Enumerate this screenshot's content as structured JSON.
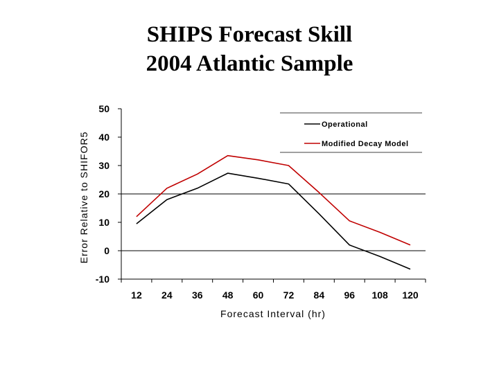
{
  "page": {
    "title_line1": "SHIPS Forecast Skill",
    "title_line2": "2004 Atlantic Sample"
  },
  "chart_data": {
    "type": "line",
    "title": "SHIPS Forecast Skill 2004 Atlantic Sample",
    "xlabel": "Forecast Interval (hr)",
    "ylabel": "Error Relative to SHIFOR5",
    "x": [
      12,
      24,
      36,
      48,
      60,
      72,
      84,
      96,
      108,
      120
    ],
    "ylim": [
      -10,
      50
    ],
    "yticks": [
      -10,
      0,
      10,
      20,
      30,
      40,
      50
    ],
    "grid": "horizontal lines at 0 and 20",
    "legend_position": "top-right",
    "series": [
      {
        "name": "Operational",
        "color": "#000000",
        "values": [
          9.5,
          18,
          22,
          27.3,
          25.5,
          23.5,
          13,
          2,
          -2,
          -6.5
        ]
      },
      {
        "name": "Modified Decay Model",
        "color": "#c00000",
        "values": [
          12,
          22,
          27,
          33.5,
          32,
          30,
          20.5,
          10.5,
          6.5,
          2
        ]
      }
    ]
  }
}
